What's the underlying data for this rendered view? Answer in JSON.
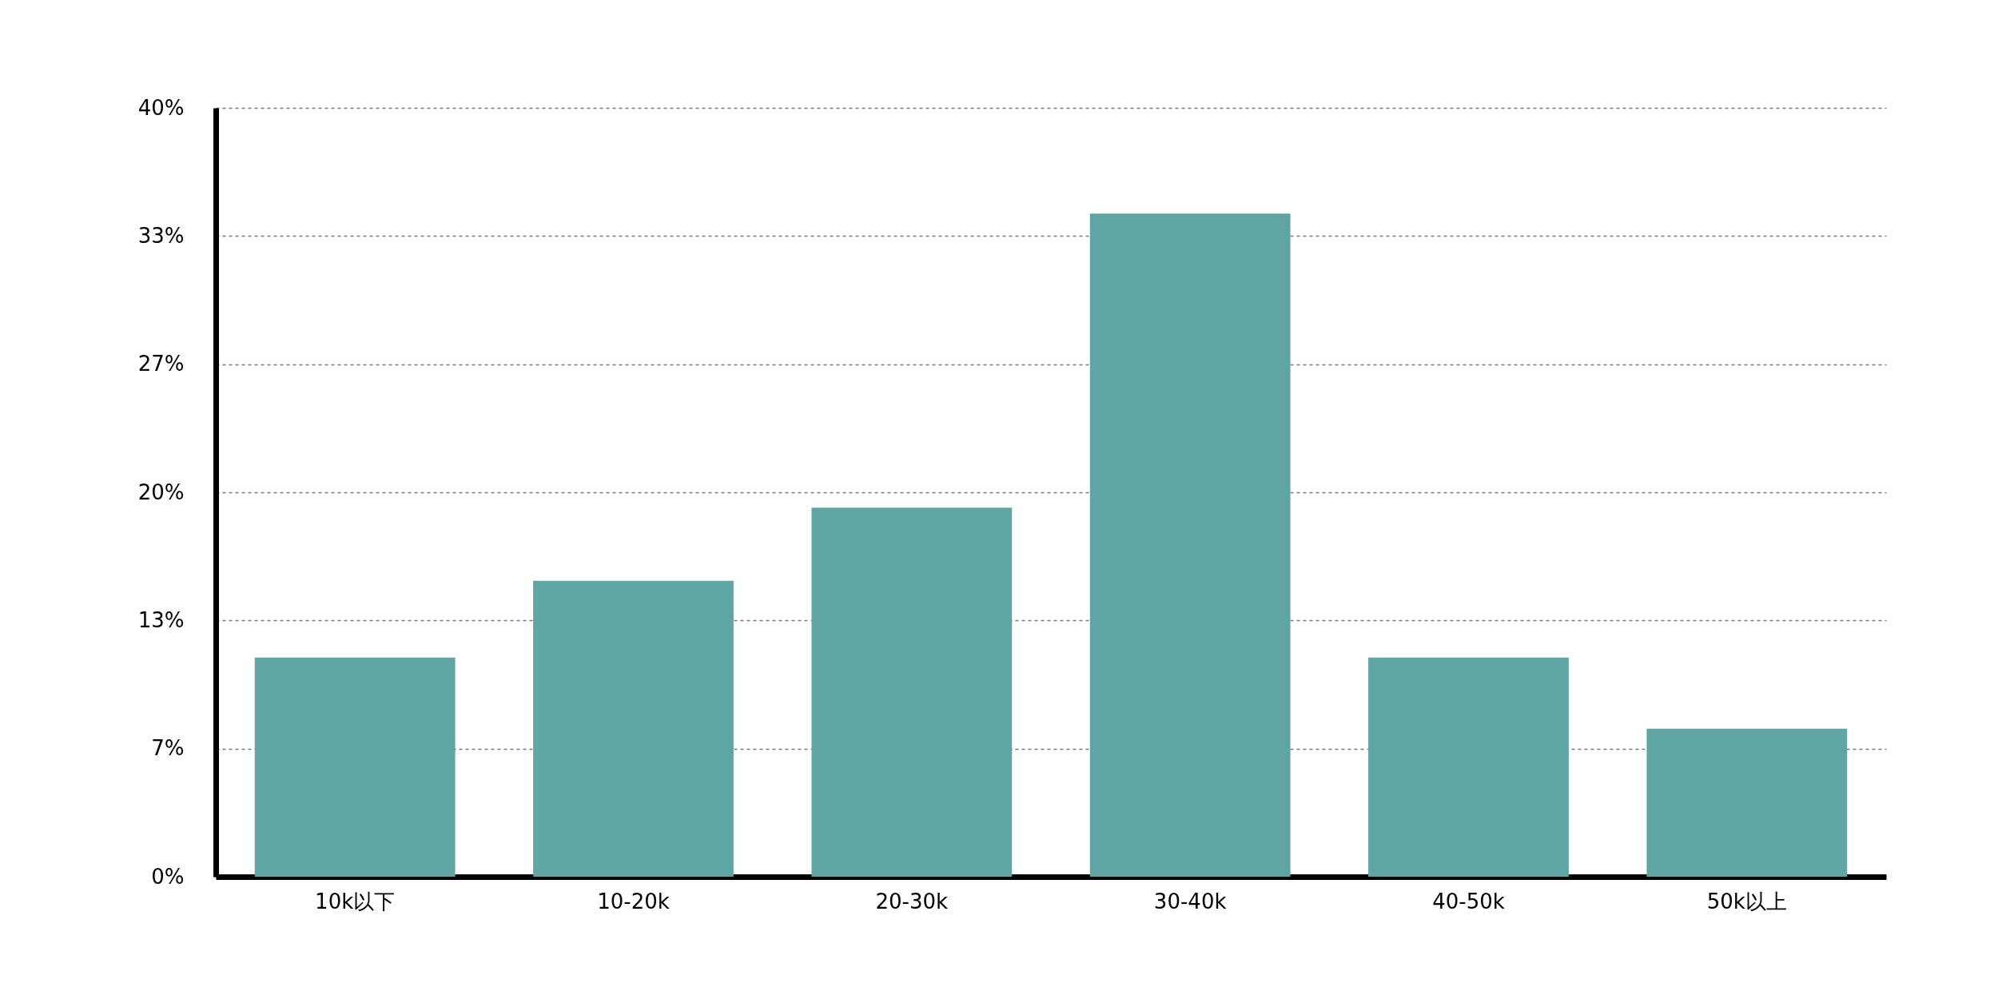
{
  "chart_data": {
    "type": "bar",
    "categories": [
      "10k以下",
      "10-20k",
      "20-30k",
      "30-40k",
      "40-50k",
      "50k以上"
    ],
    "values": [
      11.4,
      15.4,
      19.2,
      34.5,
      11.4,
      7.7
    ],
    "color": "#5fa5a3",
    "ylim": [
      0,
      40
    ],
    "yticks": [
      {
        "value": 0,
        "label": "0%"
      },
      {
        "value": 6.667,
        "label": "7%"
      },
      {
        "value": 13.333,
        "label": "13%"
      },
      {
        "value": 20,
        "label": "20%"
      },
      {
        "value": 26.667,
        "label": "27%"
      },
      {
        "value": 33.333,
        "label": "33%"
      },
      {
        "value": 40,
        "label": "40%"
      }
    ],
    "grid": "y"
  }
}
